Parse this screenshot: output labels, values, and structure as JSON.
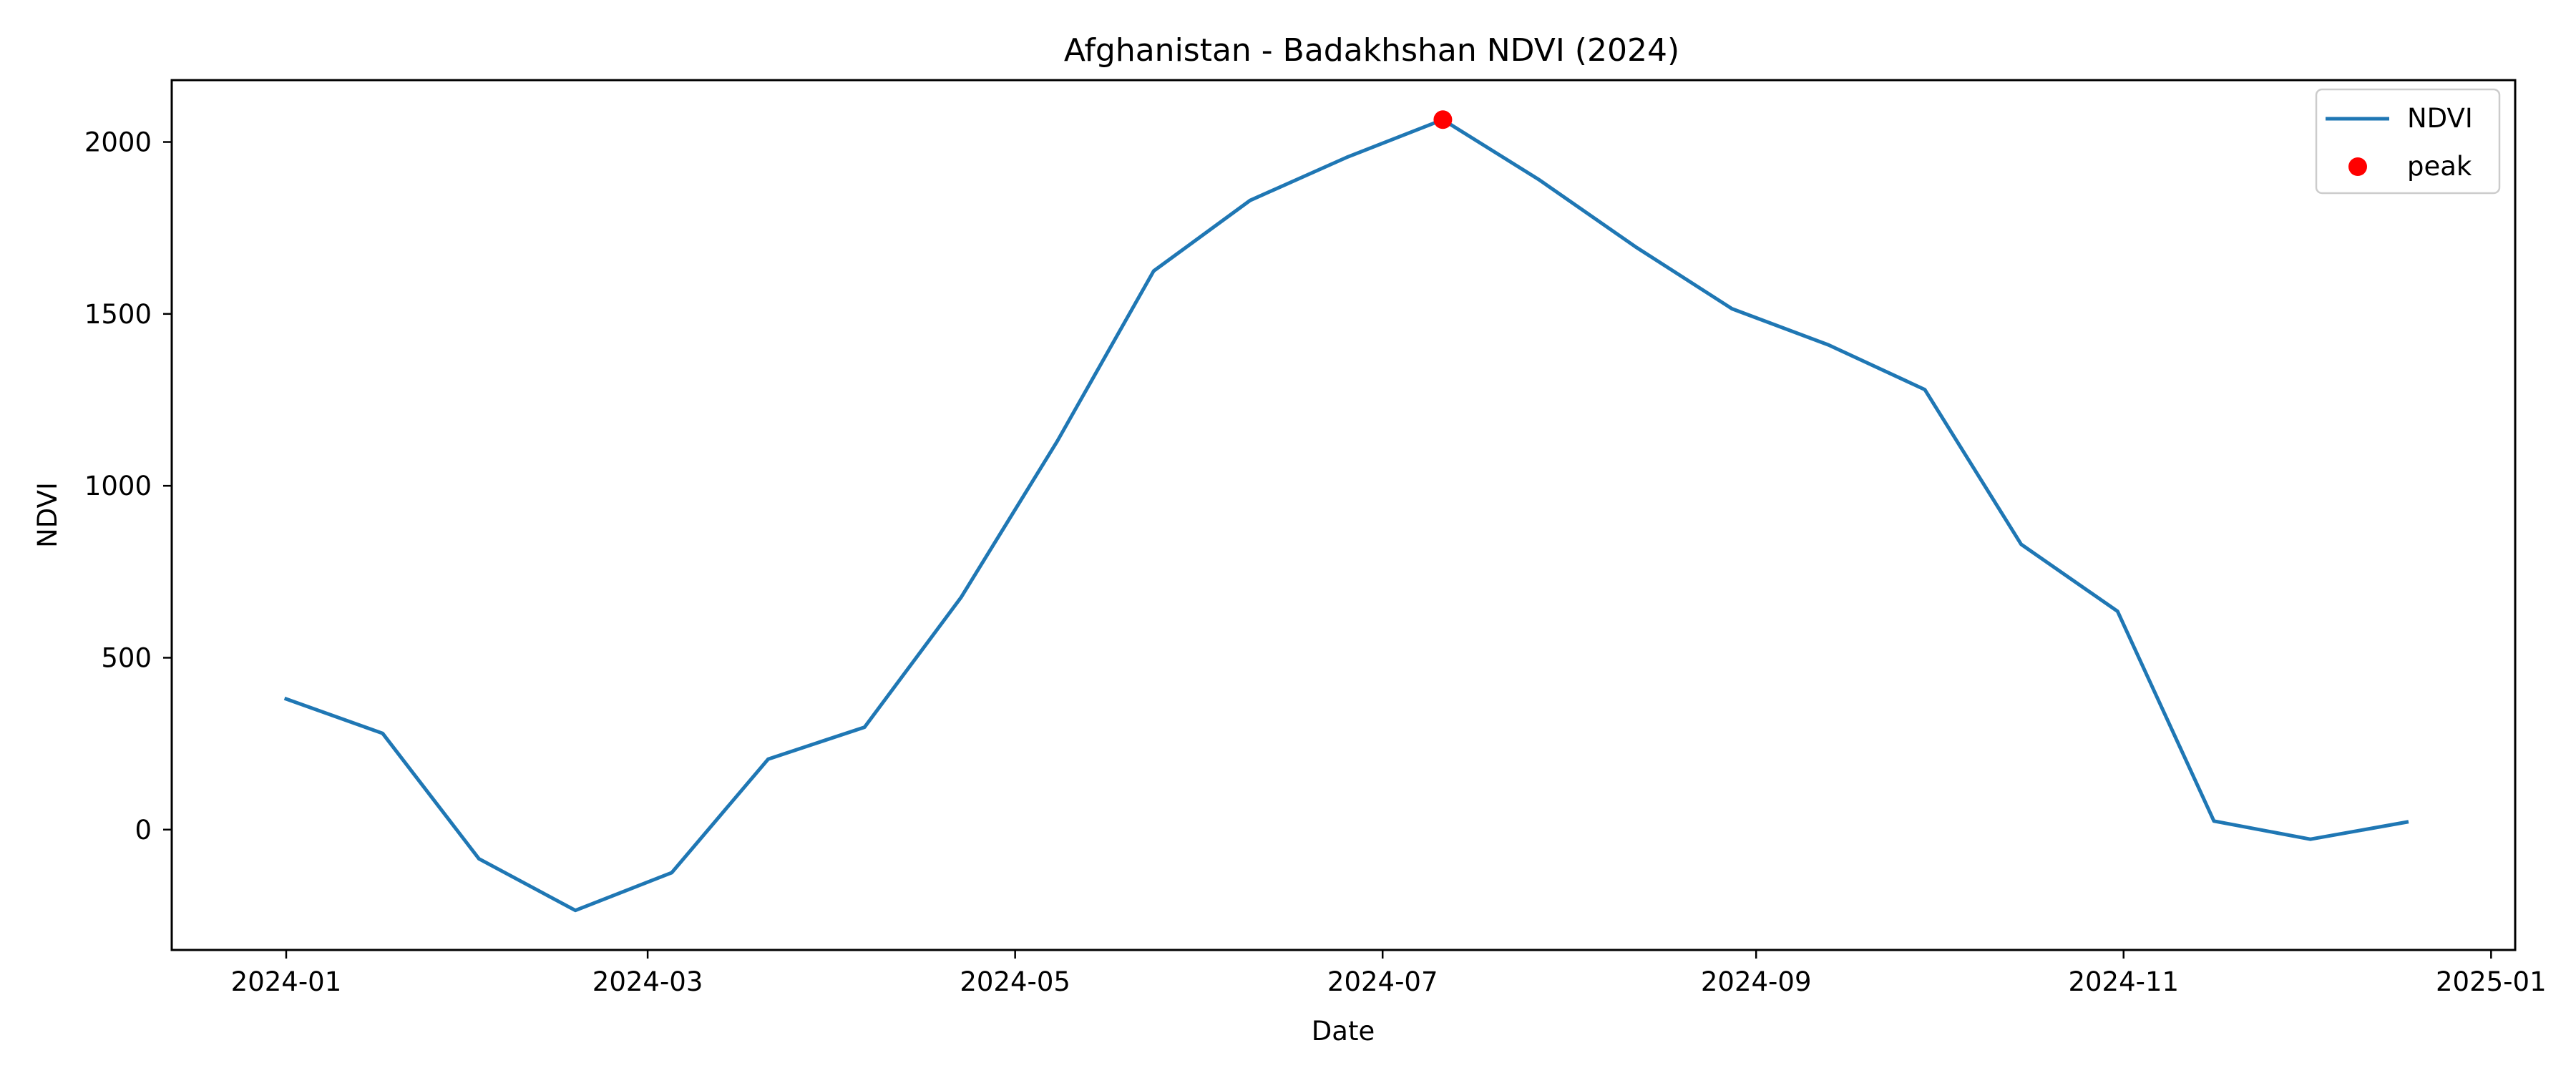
{
  "chart_data": {
    "type": "line",
    "title": "Afghanistan - Badakhshan NDVI (2024)",
    "xlabel": "Date",
    "ylabel": "NDVI",
    "x_ticks": [
      "2024-01",
      "2024-03",
      "2024-05",
      "2024-07",
      "2024-09",
      "2024-11",
      "2025-01"
    ],
    "y_ticks": [
      0,
      500,
      1000,
      1500,
      2000
    ],
    "x_range": [
      "2023-12-13",
      "2025-01-05"
    ],
    "ylim": [
      -350,
      2180
    ],
    "grid": false,
    "legend_position": "top-right",
    "colors": {
      "line": "#1f77b4",
      "peak": "#ff0000",
      "axis": "#000000",
      "legend_border": "#cccccc"
    },
    "series": [
      {
        "name": "NDVI",
        "x": [
          "2024-01-01",
          "2024-01-17",
          "2024-02-02",
          "2024-02-18",
          "2024-03-05",
          "2024-03-21",
          "2024-04-06",
          "2024-04-22",
          "2024-05-08",
          "2024-05-24",
          "2024-06-09",
          "2024-06-25",
          "2024-07-11",
          "2024-07-27",
          "2024-08-12",
          "2024-08-28",
          "2024-09-13",
          "2024-09-29",
          "2024-10-15",
          "2024-10-31",
          "2024-11-16",
          "2024-12-02",
          "2024-12-18"
        ],
        "y": [
          380,
          280,
          -85,
          -235,
          -125,
          205,
          298,
          675,
          1130,
          1625,
          1830,
          1955,
          2065,
          1890,
          1695,
          1515,
          1410,
          1280,
          830,
          635,
          25,
          -28,
          22
        ]
      }
    ],
    "peak": {
      "name": "peak",
      "x": "2024-07-11",
      "y": 2065
    }
  }
}
